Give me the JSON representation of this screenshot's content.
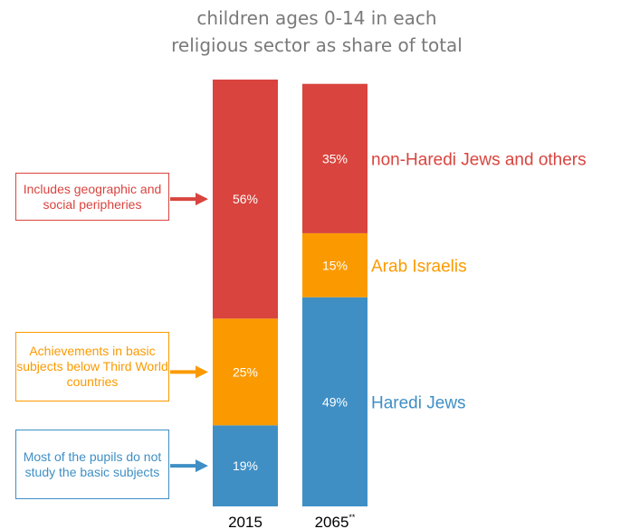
{
  "title_lines": [
    "children ages 0-14 in each",
    "religious sector as share of total"
  ],
  "colors": {
    "haredi": "#3f8fc5",
    "arab": "#fb9a00",
    "other": "#d9443e"
  },
  "callouts": [
    {
      "text": "Includes geographic and social peripheries",
      "color": "#d9443e"
    },
    {
      "text": "Achievements in basic subjects below Third World countries",
      "color": "#fb9a00"
    },
    {
      "text": "Most of the pupils do not study the basic subjects",
      "color": "#3f8fc5"
    }
  ],
  "chart_data": {
    "type": "bar",
    "stacked": true,
    "percent": true,
    "title": "children ages 0-14 in each religious sector as share of total",
    "categories": [
      "2015",
      "2065"
    ],
    "category_footnotes": [
      "",
      "**"
    ],
    "series": [
      {
        "name": "Haredi Jews",
        "values": [
          19,
          49
        ],
        "labels": [
          "19%",
          "49%"
        ]
      },
      {
        "name": "Arab Israelis",
        "values": [
          25,
          15
        ],
        "labels": [
          "25%",
          "15%"
        ]
      },
      {
        "name": "non-Haredi Jews and others",
        "values": [
          56,
          35
        ],
        "labels": [
          "56%",
          "35%"
        ]
      }
    ],
    "ylim": [
      0,
      100
    ],
    "grid": false,
    "legend": "direct labels right of second bar"
  }
}
